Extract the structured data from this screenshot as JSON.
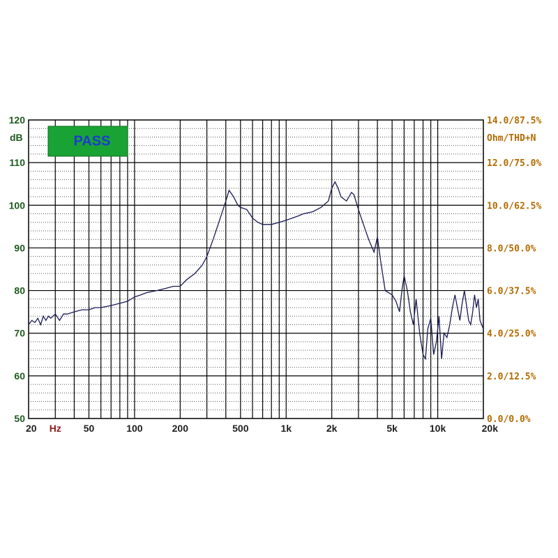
{
  "chart_data": {
    "type": "line",
    "x_scale": "log",
    "xlim": [
      20,
      20000
    ],
    "ylim": [
      50,
      120
    ],
    "grid": true,
    "left_axis": {
      "ticks": [
        "120",
        "110",
        "100",
        "90",
        "80",
        "70",
        "60",
        "50"
      ],
      "ylabel": "dB"
    },
    "right_axis": {
      "ticks": [
        "14.0/87.5%",
        "12.0/75.0%",
        "10.0/62.5%",
        "8.0/50.0%",
        "6.0/37.5%",
        "4.0/25.0%",
        "2.0/12.5%",
        "0.0/0.0%"
      ],
      "ylabel": "Ohm/THD+N"
    },
    "x_axis": {
      "ticks": [
        {
          "label": "20",
          "value": 20
        },
        {
          "label": "Hz",
          "value": 30
        },
        {
          "label": "50",
          "value": 50
        },
        {
          "label": "100",
          "value": 100
        },
        {
          "label": "200",
          "value": 200
        },
        {
          "label": "500",
          "value": 500
        },
        {
          "label": "1k",
          "value": 1000
        },
        {
          "label": "2k",
          "value": 2000
        },
        {
          "label": "5k",
          "value": 5000
        },
        {
          "label": "10k",
          "value": 10000
        },
        {
          "label": "20k",
          "value": 20000
        }
      ]
    },
    "badge": {
      "text": "PASS",
      "background": "#1aa335",
      "text_color": "#1a3ecc"
    },
    "colors": {
      "grid": "#000000",
      "line": "#1a1a55",
      "left_text": "#1f5a1f",
      "right_text": "#b36b00"
    },
    "series": [
      {
        "x": [
          20,
          21,
          22,
          23,
          24,
          25,
          26,
          27,
          28,
          30,
          32,
          34,
          36,
          40,
          45,
          50,
          55,
          60,
          70,
          80,
          90,
          100,
          110,
          120,
          140,
          160,
          180,
          200,
          220,
          250,
          280,
          300,
          330,
          360,
          400,
          420,
          450,
          480,
          500,
          550,
          600,
          650,
          700,
          800,
          900,
          1000,
          1100,
          1200,
          1300,
          1500,
          1700,
          1900,
          2000,
          2100,
          2200,
          2300,
          2500,
          2700,
          2800,
          3000,
          3200,
          3500,
          3800,
          4000,
          4200,
          4500,
          5000,
          5300,
          5600,
          5800,
          6000,
          6300,
          6600,
          6900,
          7200,
          7600,
          8000,
          8300,
          8600,
          9000,
          9400,
          9800,
          10200,
          10600,
          11000,
          11500,
          12000,
          12500,
          13000,
          14000,
          14500,
          15000,
          16000,
          16500,
          17000,
          17500,
          18000,
          18500,
          19000,
          20000
        ],
        "y": [
          72,
          73,
          72.5,
          73.5,
          72,
          74,
          73,
          74,
          73.5,
          74.5,
          73,
          74.5,
          74.5,
          75,
          75.5,
          75.5,
          76,
          76,
          76.5,
          77,
          77.5,
          78.5,
          79,
          79.5,
          80,
          80.5,
          81,
          81,
          82.5,
          84,
          86,
          88,
          92,
          96,
          101,
          103.5,
          102,
          100,
          99.5,
          99,
          97,
          96,
          95.5,
          95.5,
          96,
          96.5,
          97,
          97.5,
          98,
          98.5,
          99.5,
          101,
          104,
          105.5,
          104,
          102,
          101,
          103,
          102.5,
          99,
          96,
          92,
          89,
          92.5,
          87,
          80,
          79,
          77.5,
          75,
          80,
          83.5,
          80,
          75,
          72,
          78,
          70,
          65,
          64,
          71,
          73.5,
          65,
          68,
          74,
          64,
          70,
          69,
          72,
          76,
          79,
          73,
          77,
          80,
          73,
          72,
          75,
          79,
          76,
          78,
          73,
          71
        ]
      }
    ]
  }
}
